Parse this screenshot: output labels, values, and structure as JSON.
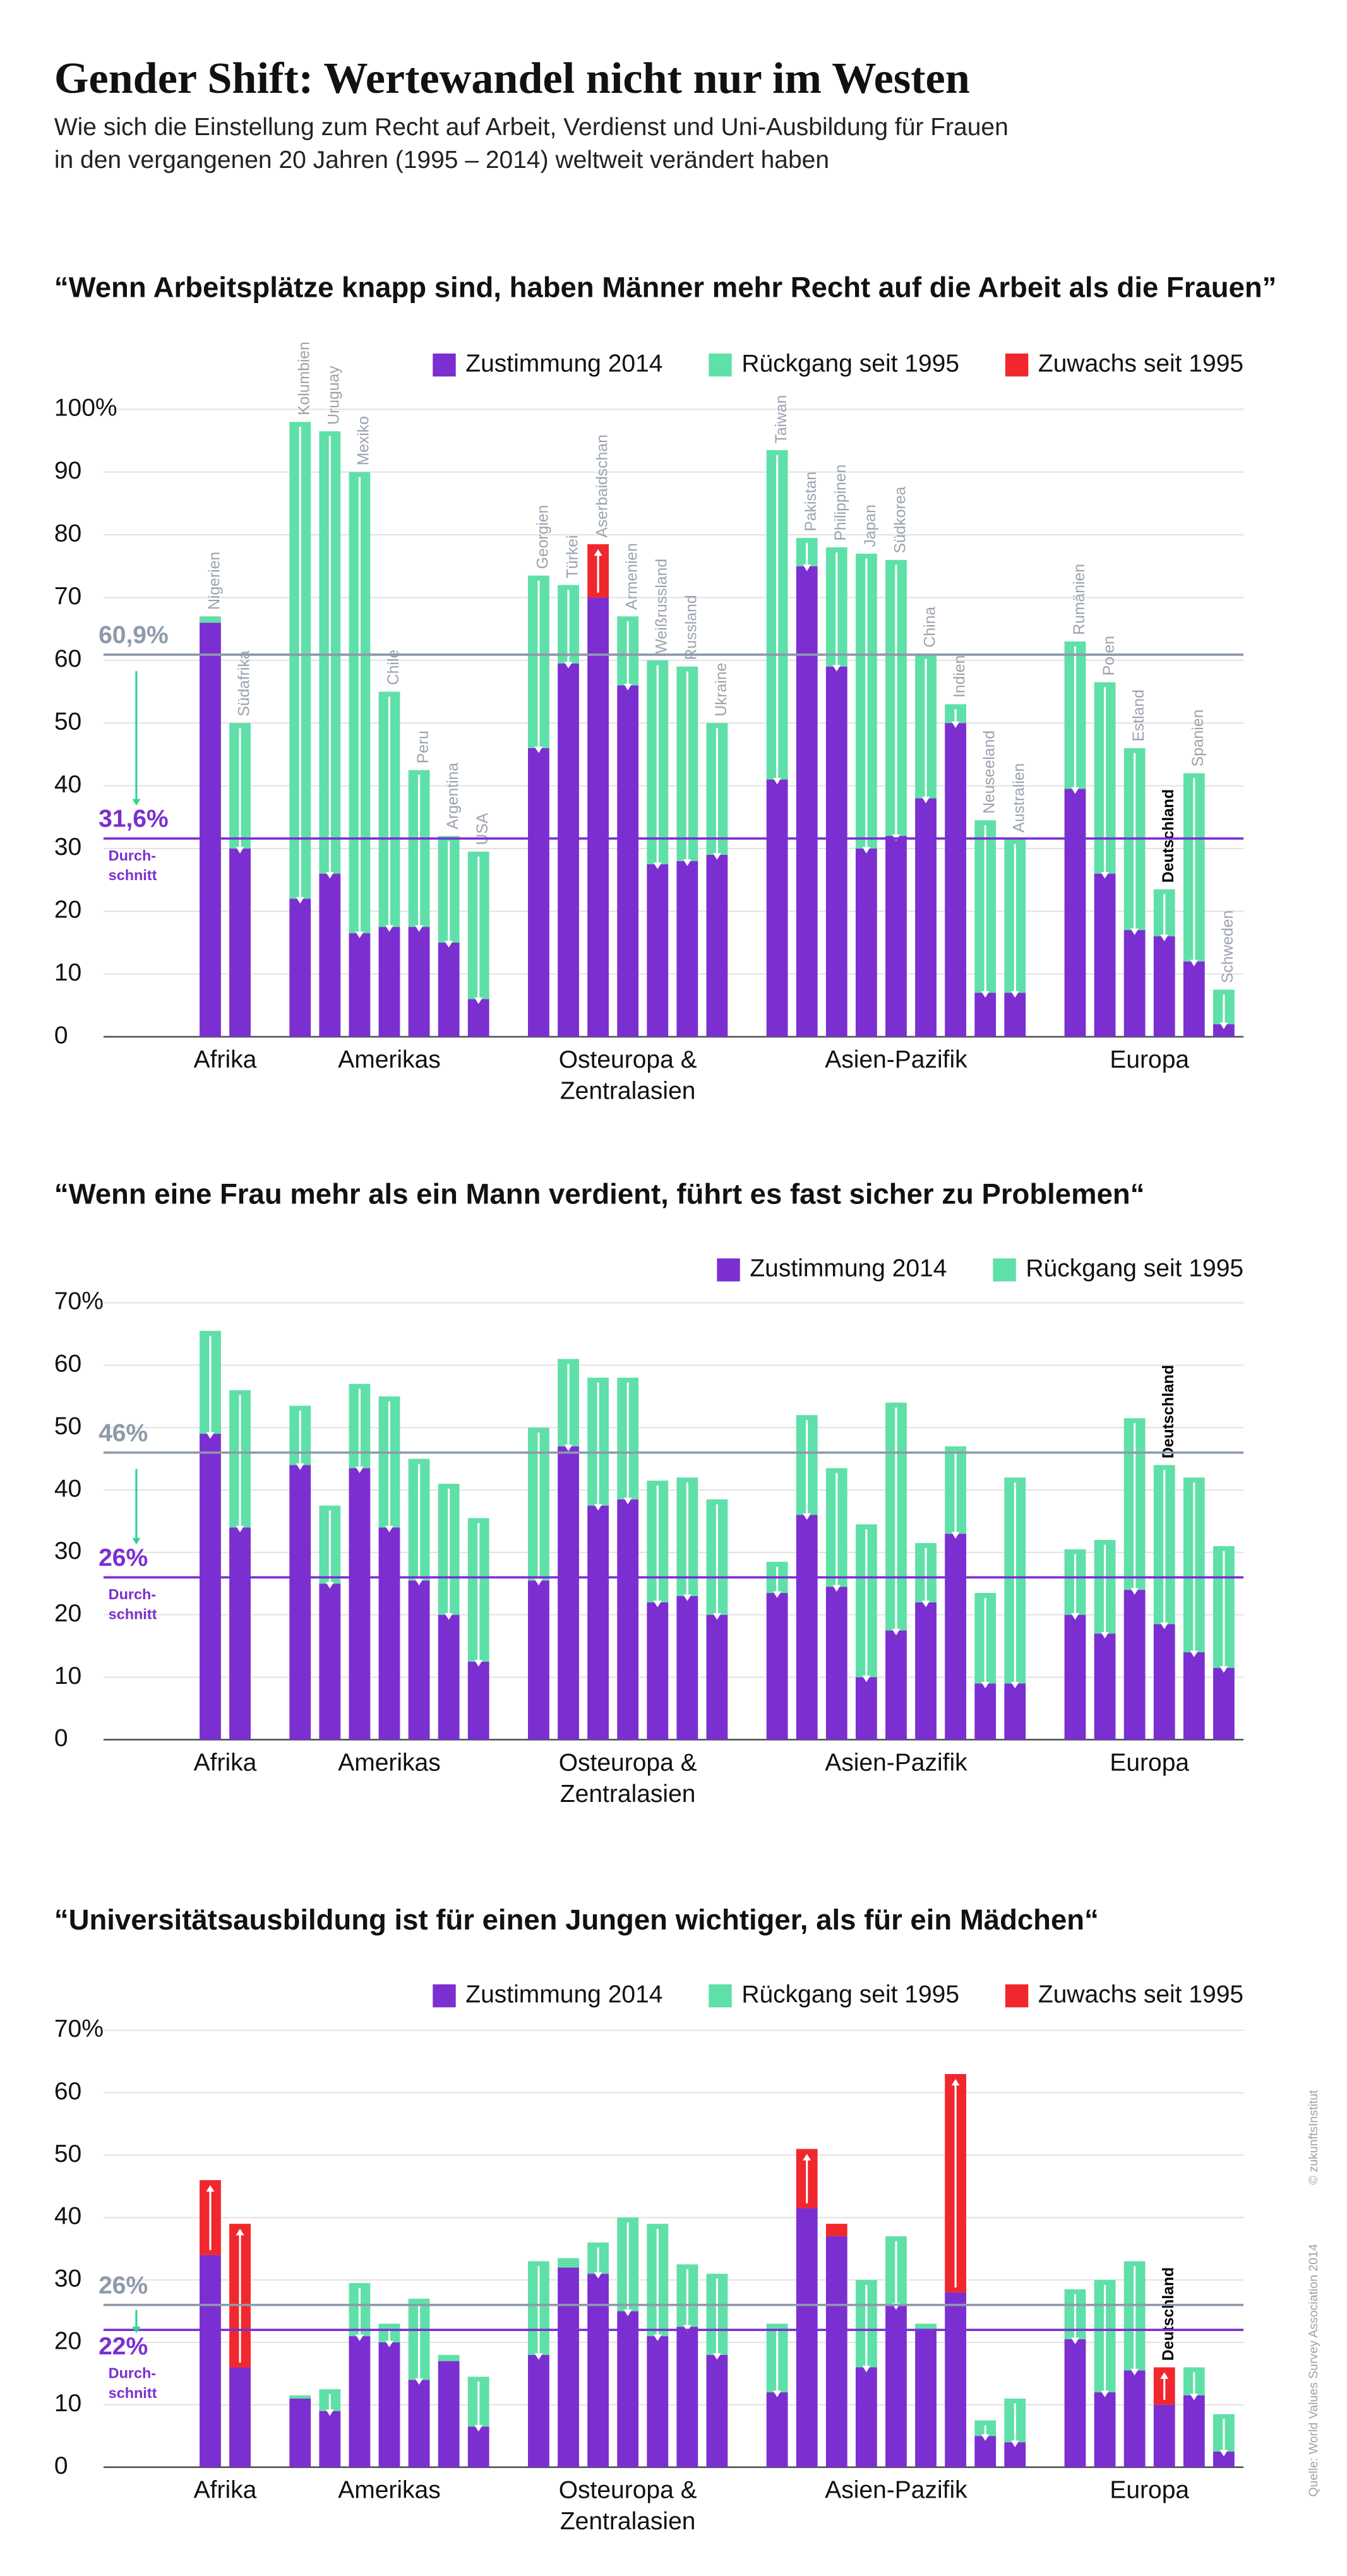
{
  "header": {
    "title": "Gender Shift: Wertewandel nicht nur im Westen",
    "subtitle": [
      "Wie sich die Einstellung zum Recht auf Arbeit, Verdienst und Uni-Ausbildung für Frauen",
      "in den vergangenen 20 Jahren (1995 – 2014) weltweit verändert haben"
    ]
  },
  "footer": {
    "credit": "© zukunftsInstitut",
    "source": "Quelle: World Values Survey Association 2014"
  },
  "chart_data": [
    {
      "type": "stacked_bar",
      "title": "“Wenn Arbeitsplätze knapp sind, haben Männer mehr Recht auf die Arbeit als die Frauen”",
      "categories": [
        "Nigerien",
        "Südafrika",
        "Kolumbien",
        "Uruguay",
        "Mexiko",
        "Chile",
        "Peru",
        "Argentina",
        "USA",
        "Georgien",
        "Türkei",
        "Aserbaidschan",
        "Armenien",
        "Weißrussland",
        "Russland",
        "Ukraine",
        "Taiwan",
        "Pakistan",
        "Philippinen",
        "Japan",
        "Südkorea",
        "China",
        "Indien",
        "Neuseeland",
        "Australien",
        "Rumänien",
        "Polen",
        "Estland",
        "Deutschland",
        "Spanien",
        "Schweden"
      ],
      "category_groups": [
        "Afrika",
        "Afrika",
        "Amerikas",
        "Amerikas",
        "Amerikas",
        "Amerikas",
        "Amerikas",
        "Amerikas",
        "Amerikas",
        "Osteuropa & Zentralasien",
        "Osteuropa & Zentralasien",
        "Osteuropa & Zentralasien",
        "Osteuropa & Zentralasien",
        "Osteuropa & Zentralasien",
        "Osteuropa & Zentralasien",
        "Osteuropa & Zentralasien",
        "Asien-Pazifik",
        "Asien-Pazifik",
        "Asien-Pazifik",
        "Asien-Pazifik",
        "Asien-Pazifik",
        "Asien-Pazifik",
        "Asien-Pazifik",
        "Asien-Pazifik",
        "Asien-Pazifik",
        "Europa",
        "Europa",
        "Europa",
        "Europa",
        "Europa",
        "Europa"
      ],
      "highlight": "Deutschland",
      "series": [
        {
          "name": "Zustimmung 2014",
          "color": "#7b2fd1",
          "values": [
            66,
            30,
            22,
            26,
            16.5,
            17.5,
            17.5,
            15,
            6,
            46,
            59.5,
            70,
            56,
            27.5,
            28,
            29,
            41,
            75,
            59,
            30,
            32,
            38,
            50,
            7,
            7,
            39.5,
            26,
            17,
            16,
            12,
            2
          ]
        },
        {
          "name": "Rückgang seit 1995",
          "color": "#5fe0a8",
          "values": [
            1,
            20,
            76,
            70.5,
            73.5,
            37.5,
            25,
            17,
            23.5,
            27.5,
            12.5,
            null,
            11,
            32.5,
            31,
            21,
            52.5,
            4.5,
            19,
            47,
            44,
            23,
            3,
            27.5,
            24.5,
            23.5,
            30.5,
            29,
            7.5,
            30,
            5.5
          ]
        },
        {
          "name": "Zuwachs seit 1995",
          "color": "#f0282d",
          "values": [
            null,
            null,
            null,
            null,
            null,
            null,
            null,
            null,
            null,
            null,
            null,
            8.5,
            null,
            null,
            null,
            null,
            null,
            null,
            null,
            null,
            null,
            null,
            null,
            null,
            null,
            null,
            null,
            null,
            null,
            null,
            null
          ]
        }
      ],
      "ylim": [
        0,
        100
      ],
      "yticks": [
        0,
        10,
        20,
        30,
        40,
        50,
        60,
        70,
        80,
        90,
        {
          "value": 100,
          "label": "100%"
        }
      ],
      "grid": true,
      "reference_lines": [
        {
          "value": 60.9,
          "label": "60,9%",
          "color": "#8e9aaa"
        },
        {
          "value": 31.6,
          "label": "31,6%",
          "color": "#7b2fd1",
          "note": [
            "Durch-",
            "schnitt"
          ]
        }
      ]
    },
    {
      "type": "stacked_bar",
      "title": "“Wenn eine Frau mehr als ein Mann verdient, führt es fast sicher zu Problemen“",
      "categories": [
        null,
        null,
        null,
        null,
        null,
        null,
        null,
        null,
        null,
        null,
        null,
        null,
        null,
        null,
        null,
        null,
        null,
        null,
        null,
        null,
        null,
        null,
        null,
        null,
        null,
        null,
        null,
        null,
        "Deutschland",
        null,
        null
      ],
      "category_groups": [
        "Afrika",
        "Afrika",
        "Amerikas",
        "Amerikas",
        "Amerikas",
        "Amerikas",
        "Amerikas",
        "Amerikas",
        "Amerikas",
        "Osteuropa & Zentralasien",
        "Osteuropa & Zentralasien",
        "Osteuropa & Zentralasien",
        "Osteuropa & Zentralasien",
        "Osteuropa & Zentralasien",
        "Osteuropa & Zentralasien",
        "Osteuropa & Zentralasien",
        "Asien-Pazifik",
        "Asien-Pazifik",
        "Asien-Pazifik",
        "Asien-Pazifik",
        "Asien-Pazifik",
        "Asien-Pazifik",
        "Asien-Pazifik",
        "Asien-Pazifik",
        "Asien-Pazifik",
        "Europa",
        "Europa",
        "Europa",
        "Europa",
        "Europa",
        "Europa"
      ],
      "highlight": "Deutschland",
      "series": [
        {
          "name": "Zustimmung 2014",
          "color": "#7b2fd1",
          "values": [
            49,
            34,
            44,
            25,
            43.5,
            34,
            25.5,
            20,
            12.5,
            25.5,
            47,
            37.5,
            38.5,
            22,
            23,
            20,
            23.5,
            36,
            24.5,
            10,
            17.5,
            22,
            33,
            9,
            9,
            20,
            17,
            24,
            18.5,
            14,
            11.5
          ]
        },
        {
          "name": "Rückgang seit 1995",
          "color": "#5fe0a8",
          "values": [
            16.5,
            22,
            9.5,
            12.5,
            13.5,
            21,
            19.5,
            21,
            23,
            24.5,
            14,
            20.5,
            19.5,
            19.5,
            19,
            18.5,
            5,
            16,
            19,
            24.5,
            36.5,
            9.5,
            14,
            14.5,
            33,
            10.5,
            15,
            27.5,
            25.5,
            28,
            19.5
          ]
        }
      ],
      "ylim": [
        0,
        70
      ],
      "yticks": [
        0,
        10,
        20,
        30,
        40,
        50,
        60,
        {
          "value": 70,
          "label": "70%"
        }
      ],
      "grid": true,
      "reference_lines": [
        {
          "value": 46,
          "label": "46%",
          "color": "#8e9aaa"
        },
        {
          "value": 26,
          "label": "26%",
          "color": "#7b2fd1",
          "note": [
            "Durch-",
            "schnitt"
          ]
        }
      ]
    },
    {
      "type": "stacked_bar",
      "title": "“Universitätsausbildung ist für einen Jungen wichtiger, als für ein Mädchen“",
      "categories": [
        null,
        null,
        null,
        null,
        null,
        null,
        null,
        null,
        null,
        null,
        null,
        null,
        null,
        null,
        null,
        null,
        null,
        null,
        null,
        null,
        null,
        null,
        null,
        null,
        null,
        null,
        null,
        null,
        "Deutschland",
        null,
        null
      ],
      "category_groups": [
        "Afrika",
        "Afrika",
        "Amerikas",
        "Amerikas",
        "Amerikas",
        "Amerikas",
        "Amerikas",
        "Amerikas",
        "Amerikas",
        "Osteuropa & Zentralasien",
        "Osteuropa & Zentralasien",
        "Osteuropa & Zentralasien",
        "Osteuropa & Zentralasien",
        "Osteuropa & Zentralasien",
        "Osteuropa & Zentralasien",
        "Osteuropa & Zentralasien",
        "Asien-Pazifik",
        "Asien-Pazifik",
        "Asien-Pazifik",
        "Asien-Pazifik",
        "Asien-Pazifik",
        "Asien-Pazifik",
        "Asien-Pazifik",
        "Asien-Pazifik",
        "Asien-Pazifik",
        "Europa",
        "Europa",
        "Europa",
        "Europa",
        "Europa",
        "Europa"
      ],
      "highlight": "Deutschland",
      "series": [
        {
          "name": "Zustimmung 2014",
          "color": "#7b2fd1",
          "values": [
            34,
            16,
            11,
            9,
            21,
            20,
            14,
            17,
            6.5,
            18,
            32,
            31,
            25,
            21,
            22.5,
            18,
            12,
            41.5,
            37,
            16,
            26,
            22,
            28,
            5,
            4,
            20.5,
            12,
            15.5,
            10,
            11.5,
            2.5
          ]
        },
        {
          "name": "Rückgang seit 1995",
          "color": "#5fe0a8",
          "values": [
            null,
            null,
            0.5,
            3.5,
            8.5,
            3,
            13,
            1,
            8,
            15,
            1.5,
            5,
            15,
            18,
            10,
            13,
            11,
            null,
            null,
            14,
            11,
            1,
            null,
            2.5,
            7,
            8,
            18,
            17.5,
            null,
            4.5,
            6
          ]
        },
        {
          "name": "Zuwachs seit 1995",
          "color": "#f0282d",
          "values": [
            12,
            23,
            null,
            null,
            null,
            null,
            null,
            null,
            null,
            null,
            null,
            null,
            null,
            null,
            null,
            null,
            null,
            9.5,
            2,
            null,
            null,
            null,
            35,
            null,
            null,
            null,
            null,
            null,
            6,
            null,
            null
          ]
        }
      ],
      "ylim": [
        0,
        70
      ],
      "yticks": [
        0,
        10,
        20,
        30,
        40,
        50,
        60,
        {
          "value": 70,
          "label": "70%"
        }
      ],
      "grid": true,
      "reference_lines": [
        {
          "value": 26,
          "label": "26%",
          "color": "#8e9aaa"
        },
        {
          "value": 22,
          "label": "22%",
          "color": "#7b2fd1",
          "note": [
            "Durch-",
            "schnitt"
          ]
        }
      ]
    }
  ]
}
